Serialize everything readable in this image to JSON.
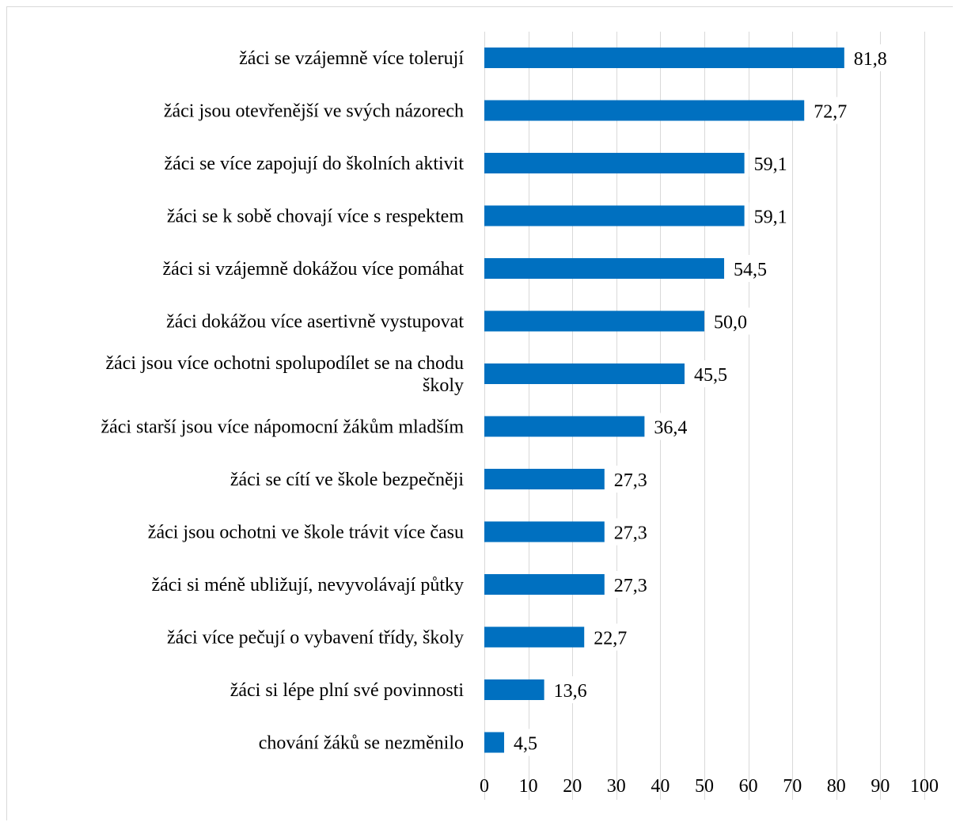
{
  "chart_data": {
    "type": "bar",
    "orientation": "horizontal",
    "categories": [
      "žáci se vzájemně více tolerují",
      "žáci jsou otevřenější ve svých názorech",
      "žáci se více zapojují do školních aktivit",
      "žáci se k sobě chovají více s respektem",
      "žáci si vzájemně dokážou více pomáhat",
      "žáci dokážou více asertivně vystupovat",
      "žáci jsou více ochotni spolupodílet se na chodu školy",
      "žáci starší jsou více nápomocní žákům mladším",
      "žáci se cítí ve škole bezpečněji",
      "žáci jsou ochotni ve škole trávit více času",
      "žáci si méně ubližují, nevyvolávají půtky",
      "žáci více pečují o vybavení třídy, školy",
      "žáci si lépe plní své povinnosti",
      "chování žáků se nezměnilo"
    ],
    "category_lines": [
      [
        "žáci se vzájemně více tolerují"
      ],
      [
        "žáci jsou otevřenější ve svých názorech"
      ],
      [
        "žáci se více zapojují do školních aktivit"
      ],
      [
        "žáci se k sobě chovají více s respektem"
      ],
      [
        "žáci si vzájemně dokážou více pomáhat"
      ],
      [
        "žáci dokážou více asertivně vystupovat"
      ],
      [
        "žáci jsou více ochotni spolupodílet se na chodu",
        "školy"
      ],
      [
        "žáci starší jsou více nápomocní žákům mladším"
      ],
      [
        "žáci se cítí ve škole bezpečněji"
      ],
      [
        "žáci jsou ochotni ve škole trávit více času"
      ],
      [
        "žáci si méně ubližují, nevyvolávají půtky"
      ],
      [
        "žáci více pečují o vybavení třídy, školy"
      ],
      [
        "žáci si lépe plní své povinnosti"
      ],
      [
        "chování žáků se nezměnilo"
      ]
    ],
    "values": [
      81.8,
      72.7,
      59.1,
      59.1,
      54.5,
      50.0,
      45.5,
      36.4,
      27.3,
      27.3,
      27.3,
      22.7,
      13.6,
      4.5
    ],
    "value_labels": [
      "81,8",
      "72,7",
      "59,1",
      "59,1",
      "54,5",
      "50,0",
      "45,5",
      "36,4",
      "27,3",
      "27,3",
      "27,3",
      "22,7",
      "13,6",
      "4,5"
    ],
    "xlim": [
      0,
      100
    ],
    "xticks": [
      "0",
      "10",
      "20",
      "30",
      "40",
      "50",
      "60",
      "70",
      "80",
      "90",
      "100"
    ],
    "grid": true,
    "legend": "none",
    "bar_color": "#0070c0",
    "grid_color": "#d9d9d9"
  }
}
